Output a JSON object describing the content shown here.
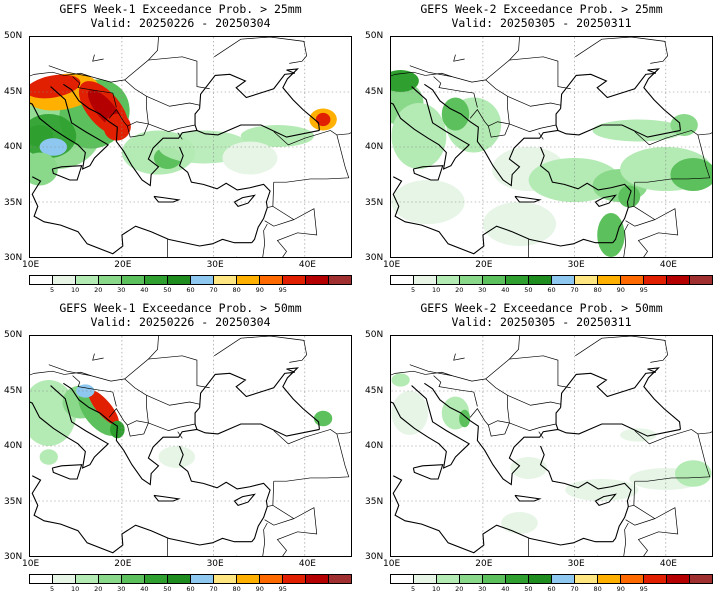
{
  "panels": [
    {
      "title1": "GEFS Week-1 Exceedance Prob. > 25mm",
      "title2": "Valid: 20250226 - 20250304",
      "intensity": "high"
    },
    {
      "title1": "GEFS Week-2 Exceedance Prob. > 25mm",
      "title2": "Valid: 20250305 - 20250311",
      "intensity": "medium"
    },
    {
      "title1": "GEFS Week-1 Exceedance Prob. > 50mm",
      "title2": "Valid: 20250226 - 20250304",
      "intensity": "low"
    },
    {
      "title1": "GEFS Week-2 Exceedance Prob. > 50mm",
      "title2": "Valid: 20250305 - 20250311",
      "intensity": "verylow"
    }
  ],
  "lat_labels": [
    "50N",
    "45N",
    "40N",
    "35N",
    "30N"
  ],
  "lon_labels": [
    "10E",
    "20E",
    "30E",
    "40E"
  ],
  "colorbar": {
    "labels": [
      "5",
      "10",
      "20",
      "30",
      "40",
      "50",
      "60",
      "70",
      "80",
      "90",
      "95"
    ],
    "colors": [
      "#ffffff",
      "#e6f5e6",
      "#b4eab4",
      "#8ad88a",
      "#5cc05c",
      "#2fa02f",
      "#1e8c1e",
      "#8ec8f0",
      "#ffe680",
      "#ffb000",
      "#ff6a00",
      "#e02000",
      "#b40000",
      "#a03030"
    ]
  }
}
